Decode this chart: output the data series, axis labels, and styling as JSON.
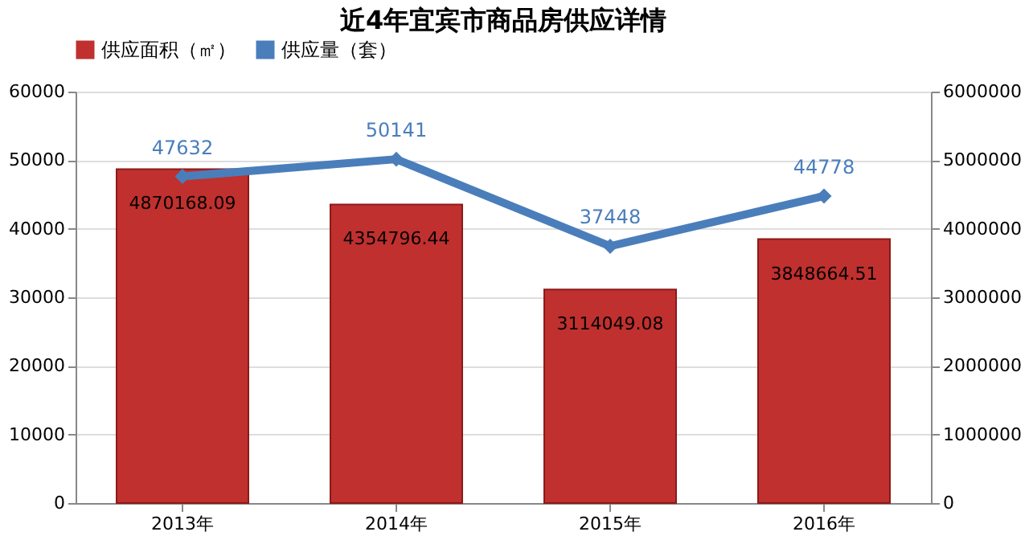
{
  "chart_data": {
    "type": "bar",
    "title": "近4年宜宾市商品房供应详情",
    "categories": [
      "2013年",
      "2014年",
      "2015年",
      "2016年"
    ],
    "series": [
      {
        "name": "供应面积（㎡）",
        "axis": "y2",
        "color": "#c0302e",
        "values": [
          4870168.09,
          4354796.44,
          3114049.08,
          3848664.51
        ]
      },
      {
        "name": "供应量（套）",
        "type": "line",
        "color": "#4a7ebb",
        "marker": "diamond",
        "values": [
          47632,
          50141,
          37448,
          44778
        ]
      }
    ],
    "ylim": [
      0,
      60000
    ],
    "yticks": [
      0,
      10000,
      20000,
      30000,
      40000,
      50000,
      60000
    ],
    "y2lim": [
      0,
      6000000
    ],
    "y2ticks": [
      0,
      1000000,
      2000000,
      3000000,
      4000000,
      5000000,
      6000000
    ],
    "grid": "y",
    "legend": "top",
    "data_labels": true
  }
}
